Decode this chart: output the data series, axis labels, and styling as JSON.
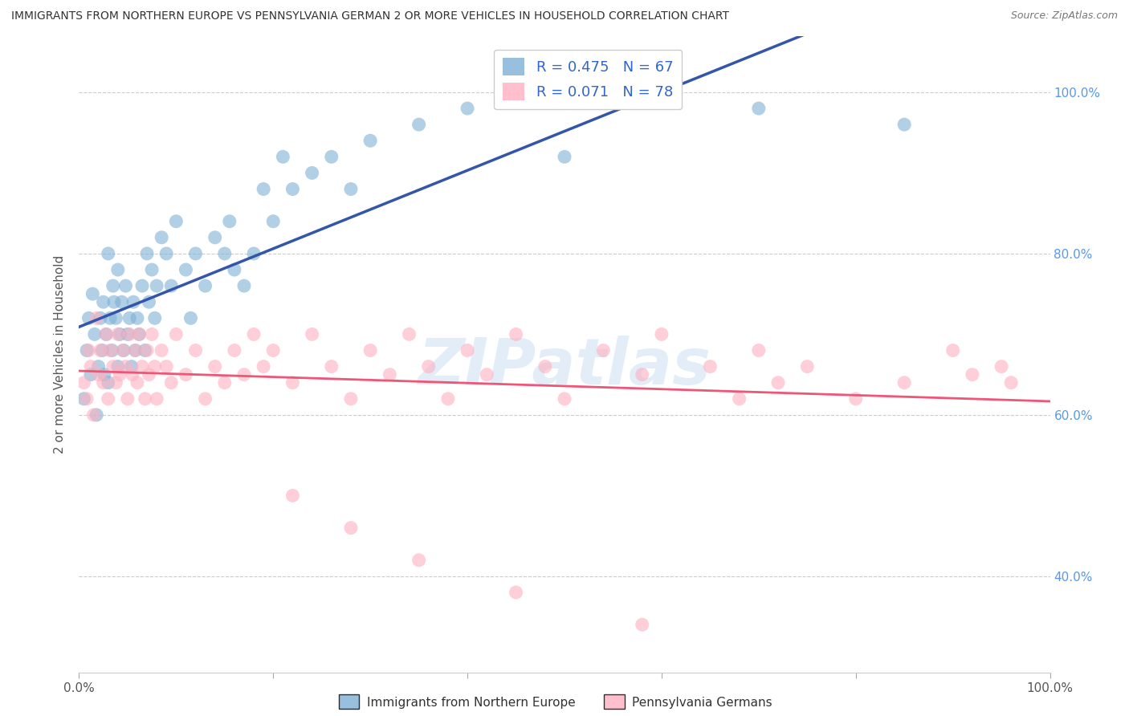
{
  "title": "IMMIGRANTS FROM NORTHERN EUROPE VS PENNSYLVANIA GERMAN 2 OR MORE VEHICLES IN HOUSEHOLD CORRELATION CHART",
  "source": "Source: ZipAtlas.com",
  "ylabel": "2 or more Vehicles in Household",
  "xlim": [
    0.0,
    1.0
  ],
  "ylim": [
    0.28,
    1.07
  ],
  "x_tick_labels": [
    "0.0%",
    "",
    "",
    "",
    "",
    "100.0%"
  ],
  "x_tick_vals": [
    0.0,
    0.2,
    0.4,
    0.6,
    0.8,
    1.0
  ],
  "y_tick_labels": [
    "40.0%",
    "60.0%",
    "80.0%",
    "100.0%"
  ],
  "y_tick_vals": [
    0.4,
    0.6,
    0.8,
    1.0
  ],
  "legend_labels": [
    "Immigrants from Northern Europe",
    "Pennsylvania Germans"
  ],
  "R_blue": 0.475,
  "N_blue": 67,
  "R_pink": 0.071,
  "N_pink": 78,
  "blue_color": "#7EB0D5",
  "pink_color": "#FFB0C0",
  "blue_line_color": "#3355AA",
  "pink_line_color": "#EE5577",
  "watermark_text": "ZIPatlas",
  "background_color": "#FFFFFF",
  "grid_color": "#CCCCCC",
  "blue_scatter_x": [
    0.005,
    0.008,
    0.01,
    0.012,
    0.014,
    0.016,
    0.018,
    0.02,
    0.022,
    0.024,
    0.025,
    0.026,
    0.028,
    0.03,
    0.03,
    0.032,
    0.034,
    0.035,
    0.036,
    0.038,
    0.04,
    0.04,
    0.042,
    0.044,
    0.046,
    0.048,
    0.05,
    0.052,
    0.054,
    0.056,
    0.058,
    0.06,
    0.062,
    0.065,
    0.068,
    0.07,
    0.072,
    0.075,
    0.078,
    0.08,
    0.085,
    0.09,
    0.095,
    0.1,
    0.11,
    0.115,
    0.12,
    0.13,
    0.14,
    0.15,
    0.155,
    0.16,
    0.17,
    0.18,
    0.19,
    0.2,
    0.21,
    0.22,
    0.24,
    0.26,
    0.28,
    0.3,
    0.35,
    0.4,
    0.5,
    0.7,
    0.85
  ],
  "blue_scatter_y": [
    0.62,
    0.68,
    0.72,
    0.65,
    0.75,
    0.7,
    0.6,
    0.66,
    0.72,
    0.68,
    0.74,
    0.65,
    0.7,
    0.64,
    0.8,
    0.72,
    0.68,
    0.76,
    0.74,
    0.72,
    0.66,
    0.78,
    0.7,
    0.74,
    0.68,
    0.76,
    0.7,
    0.72,
    0.66,
    0.74,
    0.68,
    0.72,
    0.7,
    0.76,
    0.68,
    0.8,
    0.74,
    0.78,
    0.72,
    0.76,
    0.82,
    0.8,
    0.76,
    0.84,
    0.78,
    0.72,
    0.8,
    0.76,
    0.82,
    0.8,
    0.84,
    0.78,
    0.76,
    0.8,
    0.88,
    0.84,
    0.92,
    0.88,
    0.9,
    0.92,
    0.88,
    0.94,
    0.96,
    0.98,
    0.92,
    0.98,
    0.96
  ],
  "pink_scatter_x": [
    0.005,
    0.008,
    0.01,
    0.012,
    0.015,
    0.018,
    0.02,
    0.022,
    0.025,
    0.028,
    0.03,
    0.032,
    0.035,
    0.038,
    0.04,
    0.042,
    0.045,
    0.048,
    0.05,
    0.052,
    0.055,
    0.058,
    0.06,
    0.062,
    0.065,
    0.068,
    0.07,
    0.072,
    0.075,
    0.078,
    0.08,
    0.085,
    0.09,
    0.095,
    0.1,
    0.11,
    0.12,
    0.13,
    0.14,
    0.15,
    0.16,
    0.17,
    0.18,
    0.19,
    0.2,
    0.22,
    0.24,
    0.26,
    0.28,
    0.3,
    0.32,
    0.34,
    0.36,
    0.38,
    0.4,
    0.42,
    0.45,
    0.48,
    0.5,
    0.54,
    0.58,
    0.6,
    0.65,
    0.68,
    0.7,
    0.72,
    0.75,
    0.8,
    0.85,
    0.9,
    0.92,
    0.95,
    0.96,
    0.22,
    0.28,
    0.35,
    0.45,
    0.58
  ],
  "pink_scatter_y": [
    0.64,
    0.62,
    0.68,
    0.66,
    0.6,
    0.72,
    0.65,
    0.68,
    0.64,
    0.7,
    0.62,
    0.68,
    0.66,
    0.64,
    0.7,
    0.65,
    0.68,
    0.66,
    0.62,
    0.7,
    0.65,
    0.68,
    0.64,
    0.7,
    0.66,
    0.62,
    0.68,
    0.65,
    0.7,
    0.66,
    0.62,
    0.68,
    0.66,
    0.64,
    0.7,
    0.65,
    0.68,
    0.62,
    0.66,
    0.64,
    0.68,
    0.65,
    0.7,
    0.66,
    0.68,
    0.64,
    0.7,
    0.66,
    0.62,
    0.68,
    0.65,
    0.7,
    0.66,
    0.62,
    0.68,
    0.65,
    0.7,
    0.66,
    0.62,
    0.68,
    0.65,
    0.7,
    0.66,
    0.62,
    0.68,
    0.64,
    0.66,
    0.62,
    0.64,
    0.68,
    0.65,
    0.66,
    0.64,
    0.5,
    0.46,
    0.42,
    0.38,
    0.34
  ]
}
